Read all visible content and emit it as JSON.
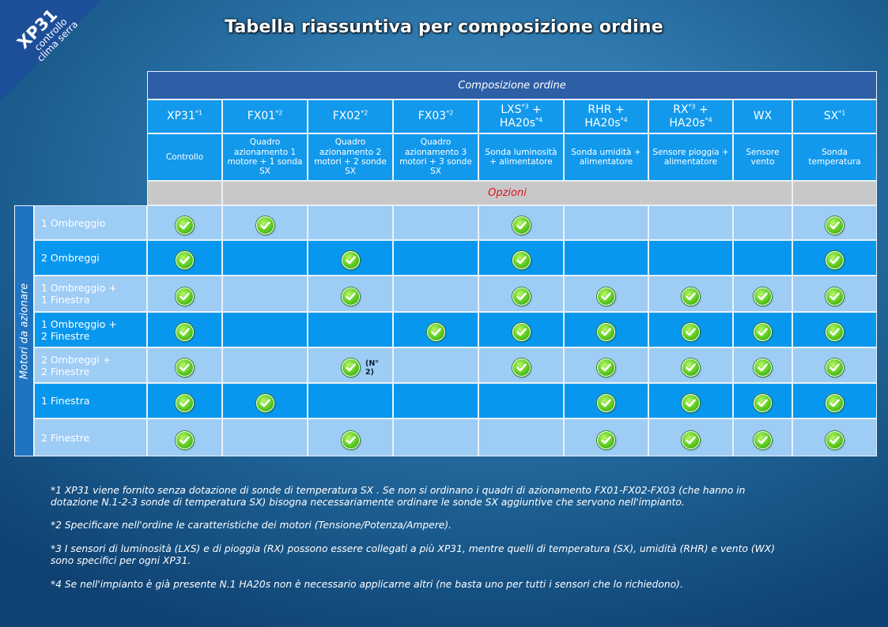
{
  "brand": {
    "name": "XP31",
    "subtitle_line1": "controllo",
    "subtitle_line2": "clima serra"
  },
  "page_title": "Tabella riassuntiva per composizione ordine",
  "table": {
    "band_label": "Composizione ordine",
    "options_label": "Opzioni",
    "side_label": "Motori da azionare",
    "columns": [
      {
        "code": "XP31",
        "sup": "*1",
        "code2": "",
        "sup2": "",
        "desc": "Controllo"
      },
      {
        "code": "FX01",
        "sup": "*2",
        "code2": "",
        "sup2": "",
        "desc": "Quadro azionamento 1 motore + 1 sonda SX"
      },
      {
        "code": "FX02",
        "sup": "*2",
        "code2": "",
        "sup2": "",
        "desc": "Quadro azionamento 2 motori + 2 sonde SX"
      },
      {
        "code": "FX03",
        "sup": "*2",
        "code2": "",
        "sup2": "",
        "desc": "Quadro azionamento 3 motori + 3 sonde SX"
      },
      {
        "code": "LXS",
        "sup": "*3",
        "code2": "HA20s",
        "sup2": "*4",
        "desc": "Sonda luminosità + alimentatore"
      },
      {
        "code": "RHR +",
        "sup": "",
        "code2": "HA20s",
        "sup2": "*4",
        "desc": "Sonda umidità + alimentatore"
      },
      {
        "code": "RX",
        "sup": "*3",
        "code2": "HA20s",
        "sup2": "*4",
        "desc": "Sensore pioggia + alimentatore"
      },
      {
        "code": "WX",
        "sup": "",
        "code2": "",
        "sup2": "",
        "desc": "Sensore vento"
      },
      {
        "code": "SX",
        "sup": "*1",
        "code2": "",
        "sup2": "",
        "desc": "Sonda temperatura"
      }
    ],
    "rows": [
      {
        "label": "1  Ombreggio",
        "checks": [
          true,
          true,
          false,
          false,
          true,
          false,
          false,
          false,
          true
        ],
        "note": ""
      },
      {
        "label": "2  Ombreggi",
        "checks": [
          true,
          false,
          true,
          false,
          true,
          false,
          false,
          false,
          true
        ],
        "note": ""
      },
      {
        "label": "1  Ombreggio +\n1  Finestra",
        "checks": [
          true,
          false,
          true,
          false,
          true,
          true,
          true,
          true,
          true
        ],
        "note": ""
      },
      {
        "label": "1  Ombreggio +\n2  Finestre",
        "checks": [
          true,
          false,
          false,
          true,
          true,
          true,
          true,
          true,
          true
        ],
        "note": ""
      },
      {
        "label": "2  Ombreggi +\n2  Finestre",
        "checks": [
          true,
          false,
          true,
          false,
          true,
          true,
          true,
          true,
          true
        ],
        "note": "(N° 2)"
      },
      {
        "label": "1  Finestra",
        "checks": [
          true,
          true,
          false,
          false,
          false,
          true,
          true,
          true,
          true
        ],
        "note": ""
      },
      {
        "label": "2  Finestre",
        "checks": [
          true,
          false,
          true,
          false,
          false,
          true,
          true,
          true,
          true
        ],
        "note": ""
      }
    ]
  },
  "footnotes": [
    "*1  XP31 viene fornito senza dotazione di sonde di temperatura SX . Se non si ordinano i quadri di azionamento FX01-FX02-FX03 (che hanno in\ndotazione N.1-2-3 sonde di temperatura SX) bisogna necessariamente ordinare le sonde SX aggiuntive che servono nell'impianto.",
    "*2  Specificare nell'ordine le caratteristiche dei motori (Tensione/Potenza/Ampere).",
    "*3  I sensori di luminosità (LXS) e di pioggia (RX) possono essere collegati a più XP31, mentre quelli di temperatura (SX), umidità (RHR) e vento (WX)\nsono specifici per ogni XP31.",
    "*4  Se nell'impianto è già presente N.1 HA20s non è necessario applicarne altri (ne basta uno per tutti i sensori che lo richiedono)."
  ],
  "colors": {
    "band": "#2d5ea6",
    "header": "#1299ec",
    "row_light": "#9dccf5",
    "row_dark": "#0897ee",
    "options_bg": "#c8c8c8",
    "options_text": "#d8141b",
    "check": "#62d024"
  }
}
